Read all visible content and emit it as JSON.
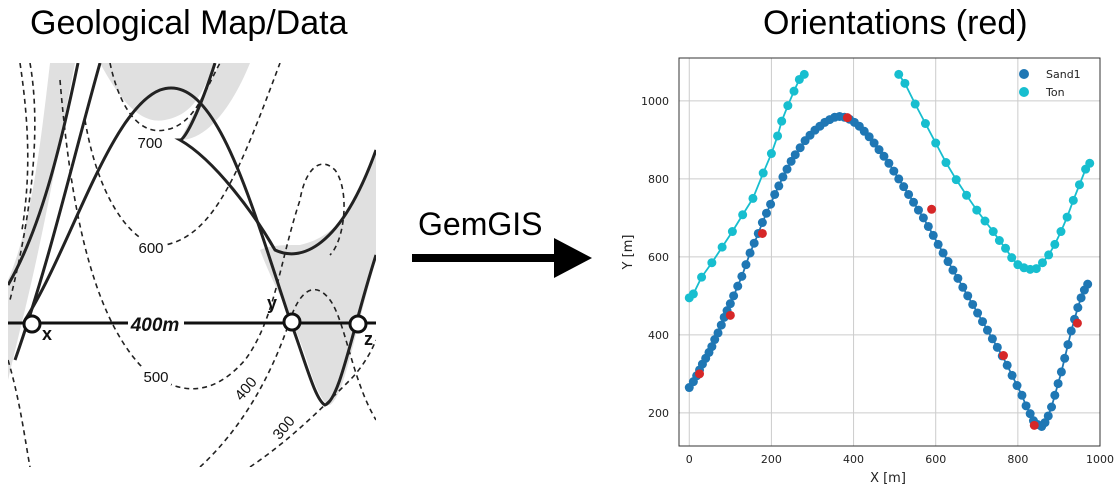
{
  "left_panel": {
    "title": "Geological Map/Data",
    "contour_labels": [
      "700",
      "600",
      "500",
      "400",
      "300"
    ],
    "section_label": "400m",
    "point_labels": [
      "x",
      "y",
      "z"
    ]
  },
  "arrow": {
    "label": "GemGIS"
  },
  "right_panel": {
    "title": "Orientations (red)"
  },
  "colors": {
    "sand1": "#1f77b4",
    "ton": "#17becf",
    "orientation": "#d62728",
    "map_fill": "#e0e0e0"
  },
  "chart_data": {
    "type": "scatter",
    "xlabel": "X [m]",
    "ylabel": "Y [m]",
    "xlim": [
      -25,
      1000
    ],
    "ylim": [
      115,
      1110
    ],
    "xticks": [
      0,
      200,
      400,
      600,
      800,
      1000
    ],
    "yticks": [
      200,
      400,
      600,
      800,
      1000
    ],
    "grid": true,
    "legend_position": "top-right",
    "series": [
      {
        "name": "Sand1",
        "x": [
          0,
          10,
          18,
          25,
          32,
          40,
          48,
          55,
          62,
          70,
          78,
          85,
          92,
          100,
          108,
          118,
          128,
          138,
          148,
          158,
          168,
          178,
          188,
          198,
          208,
          218,
          228,
          238,
          248,
          258,
          270,
          282,
          294,
          306,
          318,
          330,
          342,
          354,
          366,
          378,
          390,
          402,
          414,
          426,
          438,
          450,
          462,
          474,
          486,
          498,
          510,
          522,
          534,
          546,
          558,
          570,
          582,
          594,
          606,
          618,
          630,
          642,
          654,
          666,
          678,
          690,
          702,
          714,
          726,
          738,
          750,
          762,
          774,
          786,
          798,
          810,
          820,
          830,
          838,
          848,
          858,
          866,
          874,
          882,
          890,
          898,
          906,
          914,
          922,
          930,
          938,
          946,
          954,
          962,
          970
        ],
        "y": [
          265,
          280,
          295,
          310,
          325,
          340,
          355,
          370,
          388,
          405,
          425,
          445,
          462,
          480,
          500,
          525,
          550,
          580,
          610,
          635,
          660,
          688,
          712,
          735,
          760,
          782,
          805,
          825,
          845,
          862,
          880,
          898,
          912,
          925,
          935,
          945,
          952,
          958,
          960,
          958,
          953,
          945,
          935,
          922,
          908,
          892,
          875,
          858,
          840,
          820,
          800,
          780,
          760,
          740,
          720,
          700,
          678,
          655,
          632,
          610,
          588,
          566,
          545,
          522,
          500,
          478,
          456,
          434,
          412,
          390,
          368,
          346,
          322,
          296,
          270,
          245,
          218,
          198,
          180,
          170,
          165,
          175,
          192,
          215,
          245,
          275,
          305,
          340,
          375,
          410,
          440,
          470,
          495,
          515,
          530
        ]
      },
      {
        "name": "Ton",
        "x": [
          0,
          10,
          30,
          55,
          80,
          105,
          130,
          155,
          180,
          200,
          215,
          225,
          240,
          255,
          268,
          280,
          510,
          525,
          550,
          575,
          600,
          625,
          650,
          675,
          700,
          720,
          740,
          755,
          770,
          785,
          800,
          815,
          830,
          845,
          860,
          875,
          890,
          905,
          920,
          935,
          950,
          965,
          975
        ],
        "y": [
          495,
          505,
          548,
          585,
          625,
          665,
          708,
          750,
          815,
          865,
          910,
          948,
          988,
          1025,
          1055,
          1068,
          1068,
          1045,
          992,
          942,
          892,
          842,
          798,
          758,
          720,
          692,
          665,
          642,
          622,
          598,
          580,
          572,
          568,
          570,
          585,
          605,
          632,
          665,
          702,
          745,
          785,
          825,
          840
        ]
      }
    ],
    "orientations": {
      "name": "orientations",
      "x": [
        25,
        100,
        178,
        385,
        590,
        765,
        840,
        945
      ],
      "y": [
        300,
        450,
        660,
        957,
        722,
        347,
        168,
        430
      ]
    }
  }
}
